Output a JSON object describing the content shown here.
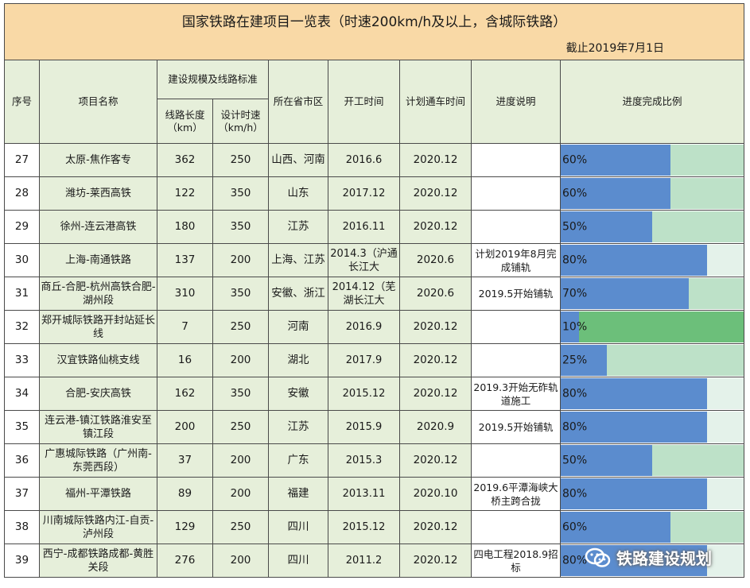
{
  "title": "国家铁路在建项目一览表（时速200km/h及以上，含城际铁路）",
  "date": "截止2019年7月1日",
  "headers": {
    "seq": "序号",
    "name": "项目名称",
    "scale": "建设规模及线路标准",
    "length": "线路长度（km）",
    "speed": "设计时速（km/h）",
    "province": "所在省市区",
    "start": "开工时间",
    "open": "计划通车时间",
    "progress_note": "进度说明",
    "progress_ratio": "进度完成比例"
  },
  "colors": {
    "title_bg": "#f9d9a6",
    "cell_green": "#e6efda",
    "bar_fill": "#5b8cce",
    "bar_bg_light": "#e4f2ea",
    "bar_bg_mid": "#bde1c8",
    "bar_bg_dark": "#6cbf7a"
  },
  "rows": [
    {
      "no": "27",
      "name": "太原-焦作客专",
      "length": "362",
      "speed": "250",
      "province": "山西、河南",
      "start": "2016.6",
      "open": "2020.12",
      "note": "",
      "progress": 0.6,
      "progress_text": "60%"
    },
    {
      "no": "28",
      "name": "潍坊-莱西高铁",
      "length": "122",
      "speed": "350",
      "province": "山东",
      "start": "2017.12",
      "open": "2020.12",
      "note": "",
      "progress": 0.6,
      "progress_text": "60%"
    },
    {
      "no": "29",
      "name": "徐州-连云港高铁",
      "length": "180",
      "speed": "350",
      "province": "江苏",
      "start": "2016.11",
      "open": "2020.12",
      "note": "",
      "progress": 0.5,
      "progress_text": "50%"
    },
    {
      "no": "30",
      "name": "上海-南通铁路",
      "length": "137",
      "speed": "200",
      "province": "上海、江苏",
      "start": "2014.3（沪通长江大",
      "open": "2020.6",
      "note": "计划2019年8月完成铺轨",
      "progress": 0.8,
      "progress_text": "80%"
    },
    {
      "no": "31",
      "name": "商丘-合肥-杭州高铁合肥-湖州段",
      "length": "310",
      "speed": "350",
      "province": "安徽、浙江",
      "start": "2014.12（芜湖长江大",
      "open": "2020.6",
      "note": "2019.5开始铺轨",
      "progress": 0.7,
      "progress_text": "70%"
    },
    {
      "no": "32",
      "name": "郑开城际铁路开封站延长线",
      "length": "7",
      "speed": "250",
      "province": "河南",
      "start": "2016.9",
      "open": "2020.12",
      "note": "",
      "progress": 0.1,
      "progress_text": "10%"
    },
    {
      "no": "33",
      "name": "汉宜铁路仙桃支线",
      "length": "16",
      "speed": "200",
      "province": "湖北",
      "start": "2017.9",
      "open": "2020.12",
      "note": "",
      "progress": 0.25,
      "progress_text": "25%"
    },
    {
      "no": "34",
      "name": "合肥-安庆高铁",
      "length": "162",
      "speed": "350",
      "province": "安徽",
      "start": "2015.12",
      "open": "2020.12",
      "note": "2019.3开始无砟轨道施工",
      "progress": 0.8,
      "progress_text": "80%"
    },
    {
      "no": "35",
      "name": "连云港-镇江铁路淮安至镇江段",
      "length": "200",
      "speed": "250",
      "province": "江苏",
      "start": "2015.9",
      "open": "2020.9",
      "note": "2019.5开始铺轨",
      "progress": 0.8,
      "progress_text": "80%"
    },
    {
      "no": "36",
      "name": "广惠城际铁路（广州南-东莞西段）",
      "length": "37",
      "speed": "200",
      "province": "广东",
      "start": "2015.3",
      "open": "2020.12",
      "note": "",
      "progress": 0.5,
      "progress_text": "50%"
    },
    {
      "no": "37",
      "name": "福州-平潭铁路",
      "length": "89",
      "speed": "200",
      "province": "福建",
      "start": "2013.11",
      "open": "2020.10",
      "note": "2019.6平潭海峡大桥主跨合拢",
      "progress": 0.8,
      "progress_text": "80%"
    },
    {
      "no": "38",
      "name": "川南城际铁路内江-自贡-泸州段",
      "length": "129",
      "speed": "250",
      "province": "四川",
      "start": "2015.12",
      "open": "2020.12",
      "note": "",
      "progress": 0.6,
      "progress_text": "60%"
    },
    {
      "no": "39",
      "name": "西宁-成都铁路成都-黄胜关段",
      "length": "276",
      "speed": "200",
      "province": "四川",
      "start": "2011.2",
      "open": "2020.12",
      "note": "四电工程2018.9招标",
      "progress": 0.8,
      "progress_text": "80%"
    }
  ],
  "watermark": {
    "text": "铁路建设规划",
    "icon": "wechat-icon"
  }
}
